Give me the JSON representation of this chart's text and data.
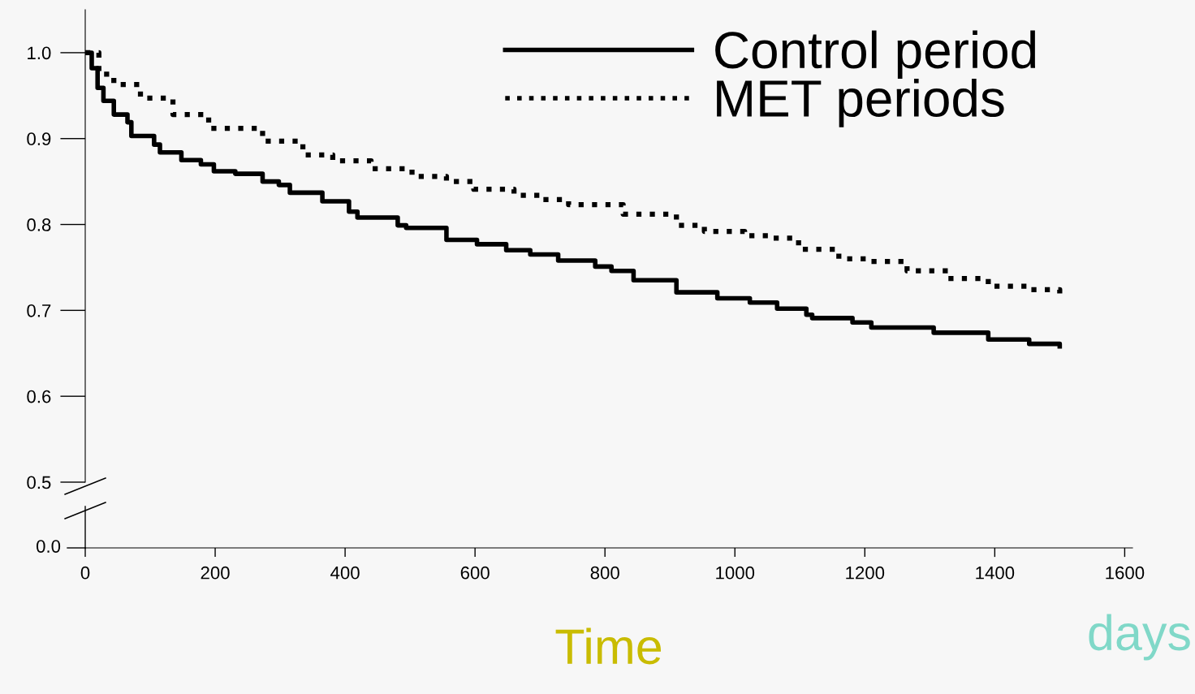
{
  "chart_data": {
    "type": "step",
    "xlabel": "Time",
    "annotations": [
      "0.0",
      "days"
    ],
    "xlim": [
      0,
      1612
    ],
    "xticks": [
      0,
      200,
      400,
      600,
      800,
      1000,
      1200,
      1400,
      1600
    ],
    "ylim": [
      0.5,
      1.05
    ],
    "yticks": [
      0.5,
      0.6,
      0.7,
      0.8,
      0.9,
      {
        "value": 1,
        "label": "1.0"
      }
    ],
    "grid": false,
    "legend": "top right",
    "series": [
      {
        "name": "Control period",
        "color": "#000000",
        "line_style": "solid",
        "x": [
          0,
          10,
          19,
          28,
          44,
          65,
          71,
          106,
          115,
          148,
          178,
          198,
          231,
          273,
          298,
          315,
          365,
          406,
          419,
          481,
          494,
          556,
          603,
          648,
          685,
          728,
          785,
          810,
          844,
          910,
          973,
          1023,
          1065,
          1110,
          1119,
          1181,
          1210,
          1306,
          1390,
          1453,
          1500
        ],
        "values": [
          1.0,
          0.982,
          0.959,
          0.944,
          0.928,
          0.919,
          0.903,
          0.893,
          0.884,
          0.875,
          0.87,
          0.862,
          0.859,
          0.85,
          0.846,
          0.837,
          0.827,
          0.815,
          0.808,
          0.799,
          0.796,
          0.782,
          0.777,
          0.77,
          0.765,
          0.758,
          0.751,
          0.746,
          0.735,
          0.721,
          0.714,
          0.709,
          0.702,
          0.695,
          0.691,
          0.686,
          0.68,
          0.674,
          0.666,
          0.661,
          0.658
        ]
      },
      {
        "name": "MET periods",
        "color": "#000000",
        "line_style": "dotted",
        "x": [
          0,
          21,
          44,
          85,
          135,
          190,
          273,
          335,
          381,
          440,
          503,
          556,
          598,
          660,
          703,
          744,
          828,
          910,
          953,
          1015,
          1056,
          1098,
          1160,
          1210,
          1265,
          1328,
          1390,
          1453,
          1500
        ],
        "values": [
          1.0,
          0.975,
          0.963,
          0.947,
          0.928,
          0.912,
          0.897,
          0.881,
          0.874,
          0.865,
          0.856,
          0.85,
          0.841,
          0.834,
          0.829,
          0.823,
          0.812,
          0.799,
          0.792,
          0.787,
          0.784,
          0.771,
          0.76,
          0.757,
          0.746,
          0.737,
          0.728,
          0.724,
          0.714
        ]
      }
    ]
  }
}
